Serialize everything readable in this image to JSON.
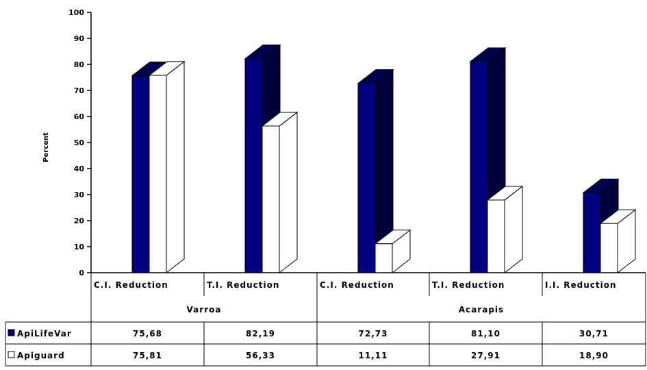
{
  "chart_data": {
    "type": "bar",
    "title": "",
    "ylabel": "Percent",
    "xlabel": "",
    "ylim": [
      0,
      100
    ],
    "yticks": [
      0,
      10,
      20,
      30,
      40,
      50,
      60,
      70,
      80,
      90,
      100
    ],
    "groups": [
      {
        "name": "Varroa",
        "categories": [
          "C.I. Reduction",
          "T.I. Reduction"
        ]
      },
      {
        "name": "Acarapis",
        "categories": [
          "C.I. Reduction",
          "T.I. Reduction",
          "I.I. Reduction"
        ]
      }
    ],
    "categories": [
      "C.I. Reduction",
      "T.I. Reduction",
      "C.I. Reduction",
      "T.I. Reduction",
      "I.I. Reduction"
    ],
    "series": [
      {
        "name": "ApiLifeVar",
        "values": [
          75.68,
          82.19,
          72.73,
          81.1,
          30.71
        ],
        "labels": [
          "75,68",
          "82,19",
          "72,73",
          "81,10",
          "30,71"
        ],
        "color": "#000080"
      },
      {
        "name": "Apiguard",
        "values": [
          75.81,
          56.33,
          11.11,
          27.91,
          18.9
        ],
        "labels": [
          "75,81",
          "56,33",
          "11,11",
          "27,91",
          "18,90"
        ],
        "color": "#ffffff"
      }
    ],
    "legend": "data-table",
    "grid": false
  }
}
